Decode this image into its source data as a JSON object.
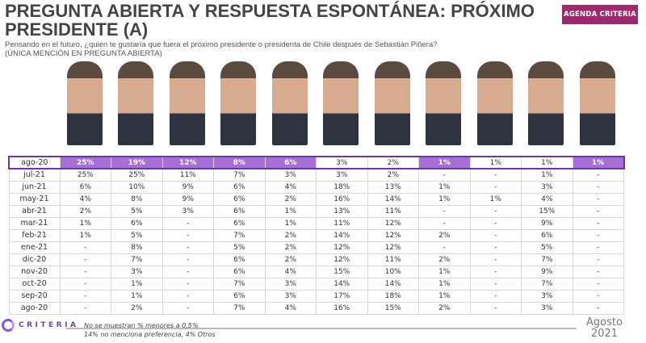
{
  "header": {
    "title": "PREGUNTA ABIERTA Y RESPUESTA ESPONTÁNEA: PRÓXIMO PRESIDENTE (A)",
    "badge": "AGENDA CRITERIA",
    "question": "Pensando en el futuro, ¿quién te gustaría que fuera el próximo presidente o presidenta de Chile después de Sebastián Piñera?",
    "note": "(ÚNICA MENCIÓN EN PREGUNTA ABIERTA)"
  },
  "candidates_count": 11,
  "highlight_color": "#a66fd6",
  "table": {
    "rows": [
      {
        "label": "ago-20",
        "values": [
          "25%",
          "19%",
          "12%",
          "8%",
          "6%",
          "3%",
          "2%",
          "1%",
          "1%",
          "1%",
          "1%"
        ],
        "highlight": [
          0,
          1,
          2,
          3,
          4,
          7,
          10
        ]
      },
      {
        "label": "jul-21",
        "values": [
          "25%",
          "25%",
          "11%",
          "7%",
          "3%",
          "3%",
          "2%",
          "-",
          "-",
          "1%",
          "-"
        ]
      },
      {
        "label": "jun-21",
        "values": [
          "6%",
          "10%",
          "9%",
          "6%",
          "4%",
          "18%",
          "13%",
          "1%",
          "-",
          "3%",
          "-"
        ]
      },
      {
        "label": "may-21",
        "values": [
          "4%",
          "8%",
          "9%",
          "6%",
          "2%",
          "16%",
          "14%",
          "1%",
          "1%",
          "4%",
          "-"
        ]
      },
      {
        "label": "abr-21",
        "values": [
          "2%",
          "5%",
          "3%",
          "6%",
          "1%",
          "13%",
          "11%",
          "-",
          "-",
          "15%",
          "-"
        ]
      },
      {
        "label": "mar-21",
        "values": [
          "1%",
          "6%",
          "-",
          "6%",
          "1%",
          "11%",
          "12%",
          "-",
          "-",
          "9%",
          "-"
        ]
      },
      {
        "label": "feb-21",
        "values": [
          "1%",
          "5%",
          "-",
          "7%",
          "2%",
          "14%",
          "12%",
          "2%",
          "-",
          "6%",
          "-"
        ]
      },
      {
        "label": "ene-21",
        "values": [
          "-",
          "8%",
          "-",
          "5%",
          "2%",
          "12%",
          "12%",
          "-",
          "-",
          "5%",
          "-"
        ]
      },
      {
        "label": "dic-20",
        "values": [
          "-",
          "7%",
          "-",
          "6%",
          "2%",
          "12%",
          "11%",
          "2%",
          "-",
          "7%",
          "-"
        ]
      },
      {
        "label": "nov-20",
        "values": [
          "-",
          "3%",
          "-",
          "6%",
          "4%",
          "15%",
          "10%",
          "1%",
          "-",
          "9%",
          "-"
        ]
      },
      {
        "label": "oct-20",
        "values": [
          "-",
          "1%",
          "-",
          "7%",
          "3%",
          "14%",
          "14%",
          "1%",
          "-",
          "7%",
          "-"
        ]
      },
      {
        "label": "sep-20",
        "values": [
          "-",
          "1%",
          "-",
          "6%",
          "3%",
          "17%",
          "18%",
          "1%",
          "-",
          "3%",
          "-"
        ]
      },
      {
        "label": "ago-20",
        "values": [
          "-",
          "2%",
          "-",
          "7%",
          "4%",
          "16%",
          "15%",
          "2%",
          "-",
          "3%",
          "-"
        ]
      }
    ]
  },
  "footer": {
    "logo": "CRITERIA",
    "note1": "No se muestran % menores a 0,5%",
    "note2": "14% no menciona preferencia, 4% Otros",
    "date_month": "Agosto",
    "date_year": "2021"
  }
}
